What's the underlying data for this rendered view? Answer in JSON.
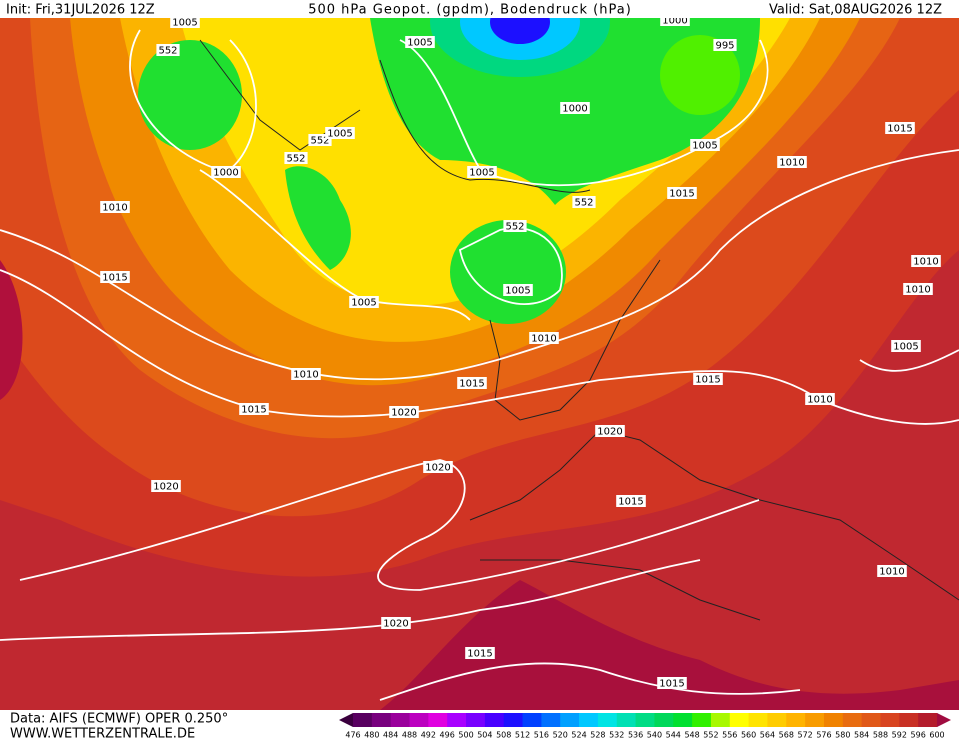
{
  "header": {
    "init": "Init: Fri,31JUL2026 12Z",
    "title": "500 hPa Geopot. (gpdm), Bodendruck (hPa)",
    "valid": "Valid: Sat,08AUG2026 12Z"
  },
  "map": {
    "isobar_labels": [
      1005,
      552,
      1005,
      1000,
      995,
      552,
      1005,
      552,
      1000,
      1005,
      1015,
      1000,
      1005,
      1010,
      1015,
      552,
      1010,
      552,
      1010,
      1015,
      1010,
      1005,
      1005,
      1010,
      1005,
      1010,
      1015,
      1015,
      1010,
      1015,
      1020,
      1020,
      1020,
      1020,
      1015,
      1010,
      1020,
      1015,
      1015
    ]
  },
  "footer": {
    "source": "Data: AIFS (ECMWF) OPER 0.250°",
    "site": "WWW.WETTERZENTRALE.DE"
  },
  "colorbar": {
    "labels": [
      476,
      480,
      484,
      488,
      492,
      496,
      500,
      504,
      508,
      512,
      516,
      520,
      524,
      528,
      532,
      536,
      540,
      544,
      548,
      552,
      556,
      560,
      564,
      568,
      572,
      576,
      580,
      584,
      588,
      592,
      596,
      600
    ],
    "colors": [
      "#3a003e",
      "#580060",
      "#78007e",
      "#9a009c",
      "#bc00c0",
      "#e000e0",
      "#a800ff",
      "#7800ff",
      "#4800ff",
      "#1c10ff",
      "#0040ff",
      "#0070ff",
      "#00a0ff",
      "#00c8ff",
      "#00e4e4",
      "#00e0b4",
      "#00dc84",
      "#00d85a",
      "#00e030",
      "#30f000",
      "#a8f800",
      "#ffff00",
      "#ffe400",
      "#ffcc00",
      "#ffb400",
      "#f89c00",
      "#f08200",
      "#e86c10",
      "#e05818",
      "#d84420",
      "#c83024",
      "#b41c2c",
      "#a00c40"
    ]
  }
}
